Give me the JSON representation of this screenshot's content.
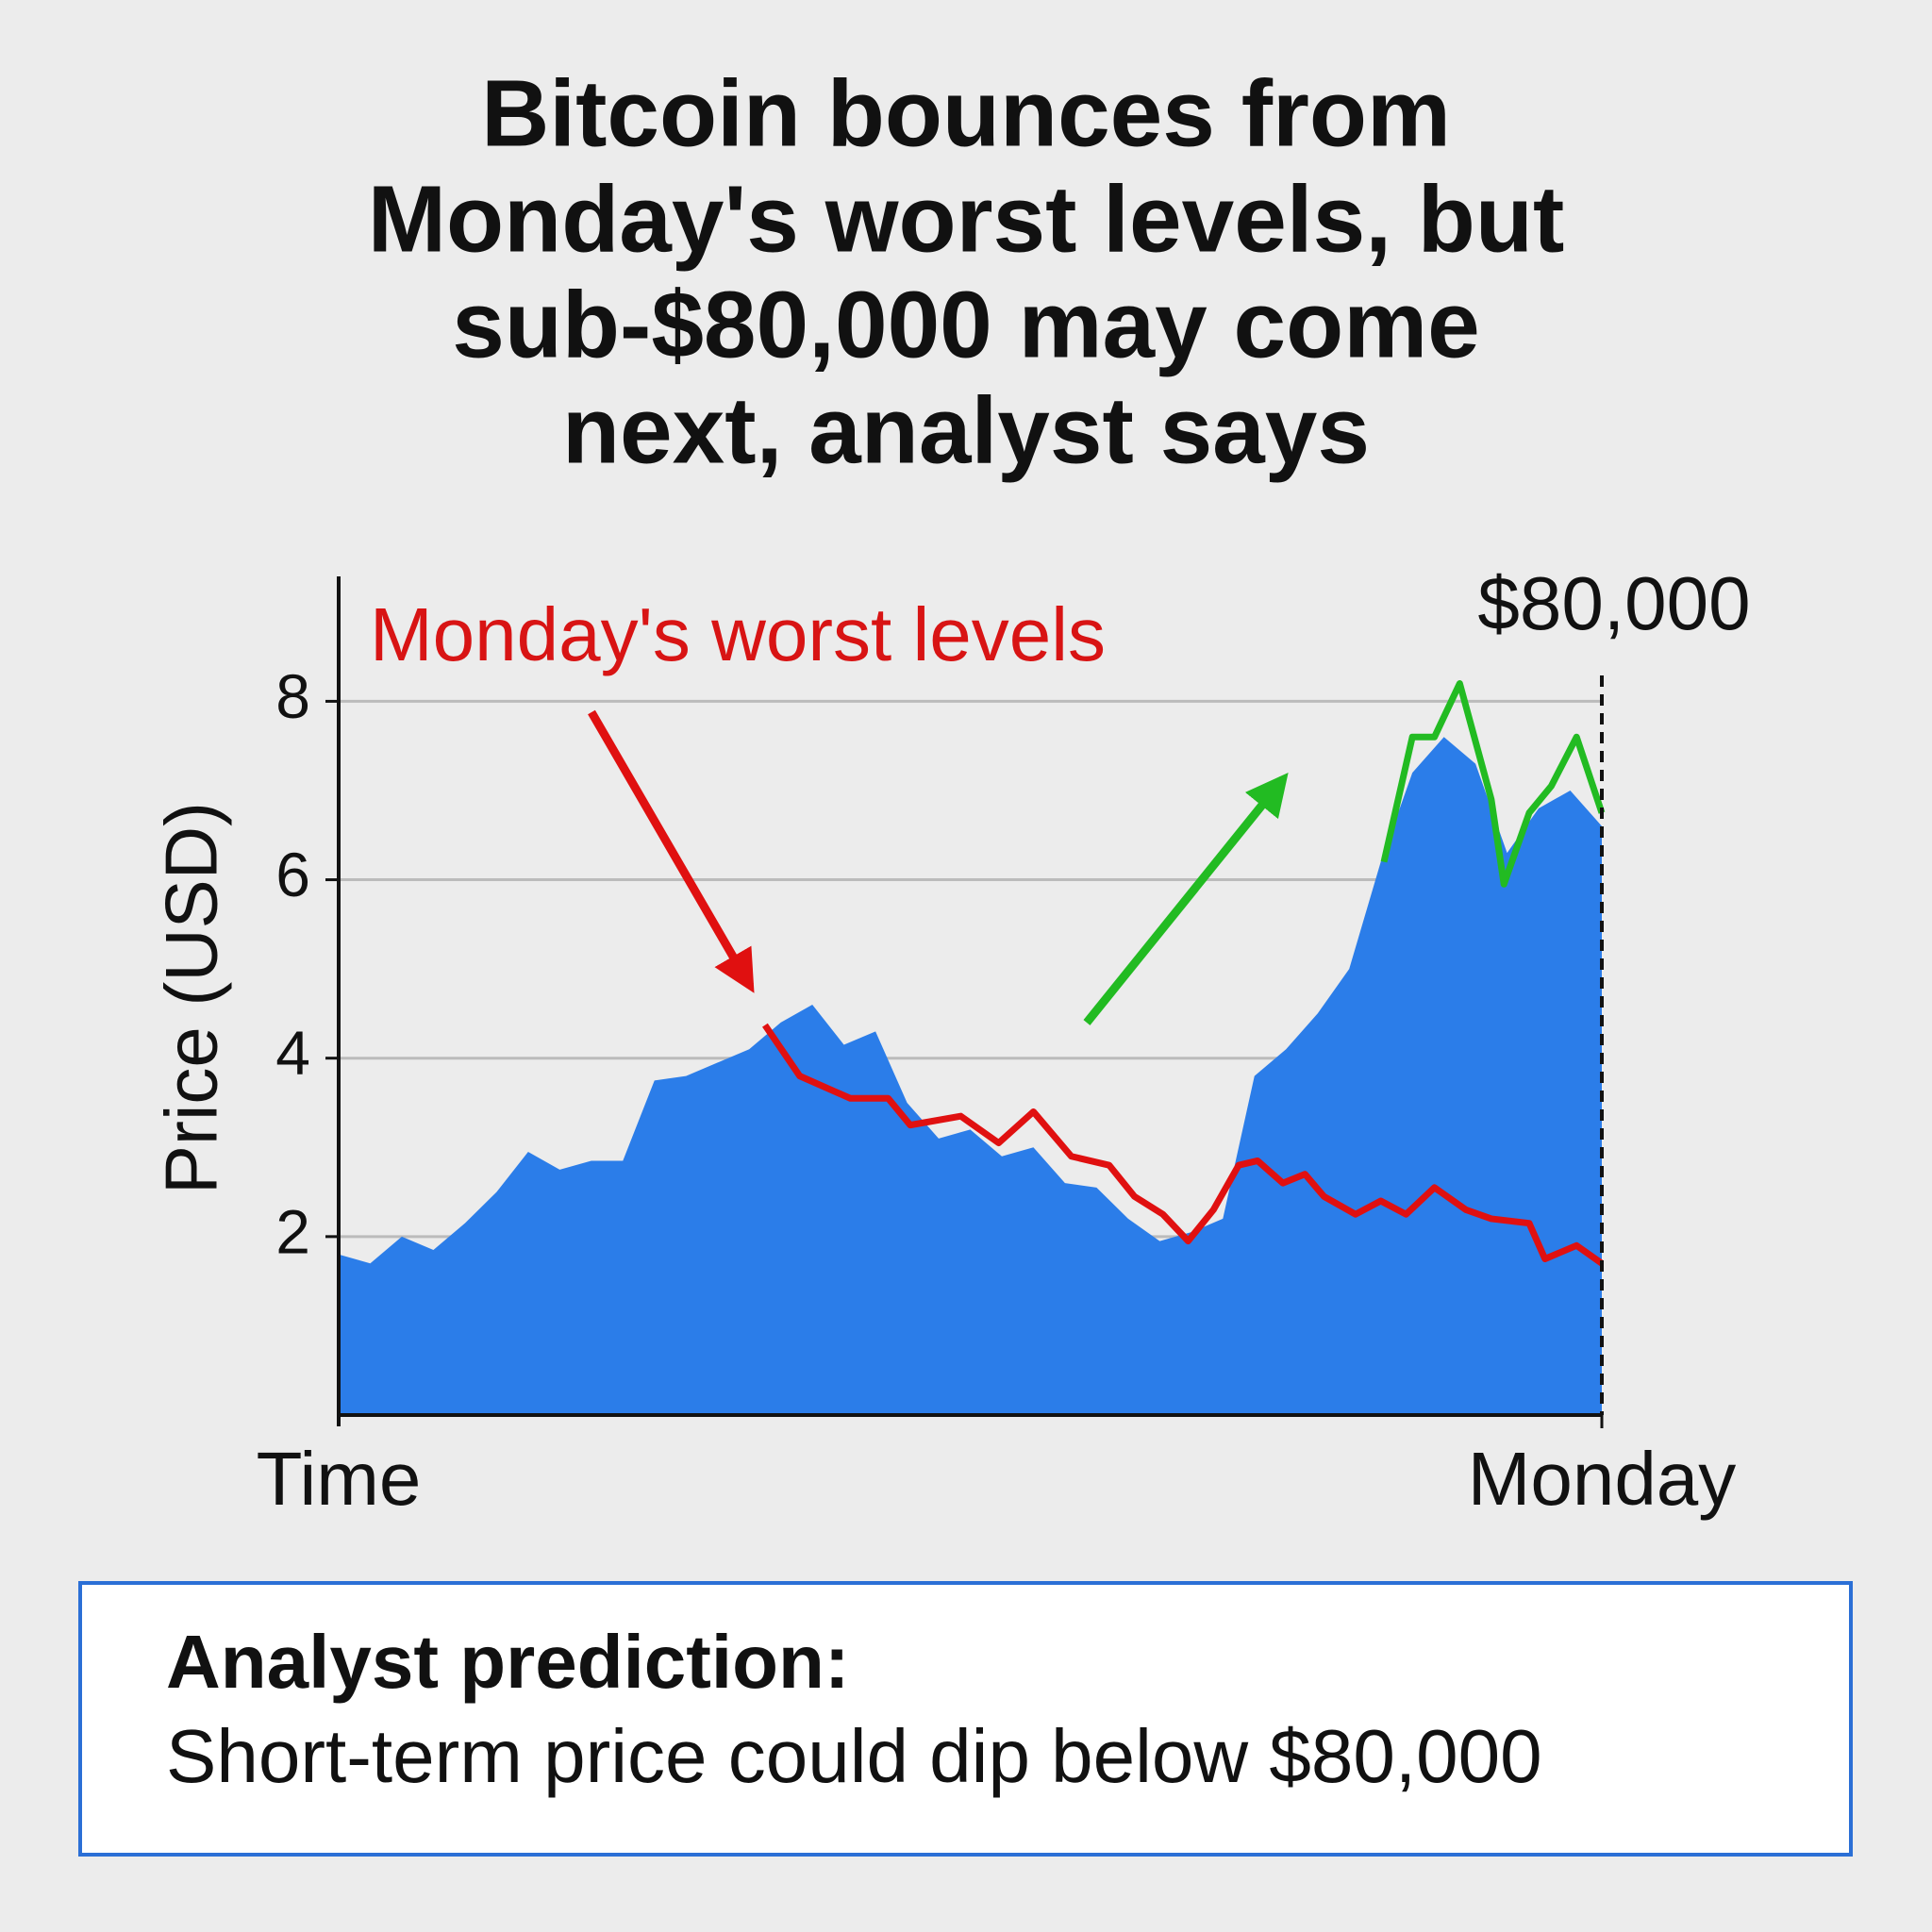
{
  "title_lines": [
    "Bitcoin bounces from",
    "Monday's worst levels, but",
    "sub-$80,000 may come",
    "next, analyst says"
  ],
  "chart_data": {
    "type": "area",
    "y_label": "Price (USD)",
    "x_label": "Time",
    "annotations": [
      "Monday's worst levels",
      "$80,000"
    ],
    "xlim": [
      0,
      40
    ],
    "xticks": [
      {
        "value": 40,
        "label": "Monday"
      }
    ],
    "ylim": [
      0,
      9.4
    ],
    "yticks": [
      2,
      4,
      6,
      8
    ],
    "grid": true,
    "series": [
      {
        "type": "area",
        "color": "#2b7de9",
        "x": [
          0,
          1,
          2,
          3,
          4,
          5,
          6,
          7,
          8,
          9,
          10,
          11,
          12,
          13,
          14,
          15,
          16,
          17,
          18,
          19,
          20,
          21,
          22,
          23,
          24,
          25,
          26,
          27,
          28,
          29,
          30,
          31,
          32,
          33,
          34,
          35,
          36,
          37,
          38,
          39,
          40
        ],
        "values": [
          1.8,
          1.7,
          2.0,
          1.85,
          2.15,
          2.5,
          2.95,
          2.75,
          2.85,
          2.85,
          3.75,
          3.8,
          3.95,
          4.1,
          4.4,
          4.6,
          4.15,
          4.3,
          3.5,
          3.1,
          3.2,
          2.9,
          3.0,
          2.6,
          2.55,
          2.2,
          1.95,
          2.05,
          2.2,
          3.8,
          4.1,
          4.5,
          5.0,
          6.2,
          7.2,
          7.6,
          7.3,
          6.3,
          6.8,
          7.0,
          6.6
        ]
      },
      {
        "type": "line",
        "color": "#e01010",
        "x": [
          13.5,
          14.6,
          16.2,
          17.4,
          18.1,
          19.7,
          20.9,
          22.0,
          23.2,
          24.4,
          25.2,
          26.1,
          26.9,
          27.7,
          28.5,
          29.1,
          29.9,
          30.6,
          31.2,
          32.2,
          33.0,
          33.8,
          34.7,
          35.7,
          36.5,
          37.7,
          38.2,
          39.2,
          40
        ],
        "values": [
          4.37,
          3.8,
          3.55,
          3.55,
          3.25,
          3.35,
          3.05,
          3.4,
          2.9,
          2.8,
          2.45,
          2.25,
          1.95,
          2.3,
          2.8,
          2.85,
          2.6,
          2.7,
          2.45,
          2.25,
          2.4,
          2.25,
          2.55,
          2.3,
          2.2,
          2.15,
          1.75,
          1.9,
          1.7
        ]
      },
      {
        "type": "line",
        "color": "#22bb22",
        "x": [
          33.1,
          34.0,
          34.7,
          35.5,
          36.5,
          36.9,
          37.7,
          38.4,
          39.2,
          40
        ],
        "values": [
          6.2,
          7.6,
          7.6,
          8.2,
          6.9,
          5.95,
          6.75,
          7.05,
          7.6,
          6.75
        ]
      }
    ]
  },
  "box": {
    "heading": "Analyst prediction:",
    "text": "Short-term price could dip below $80,000"
  }
}
